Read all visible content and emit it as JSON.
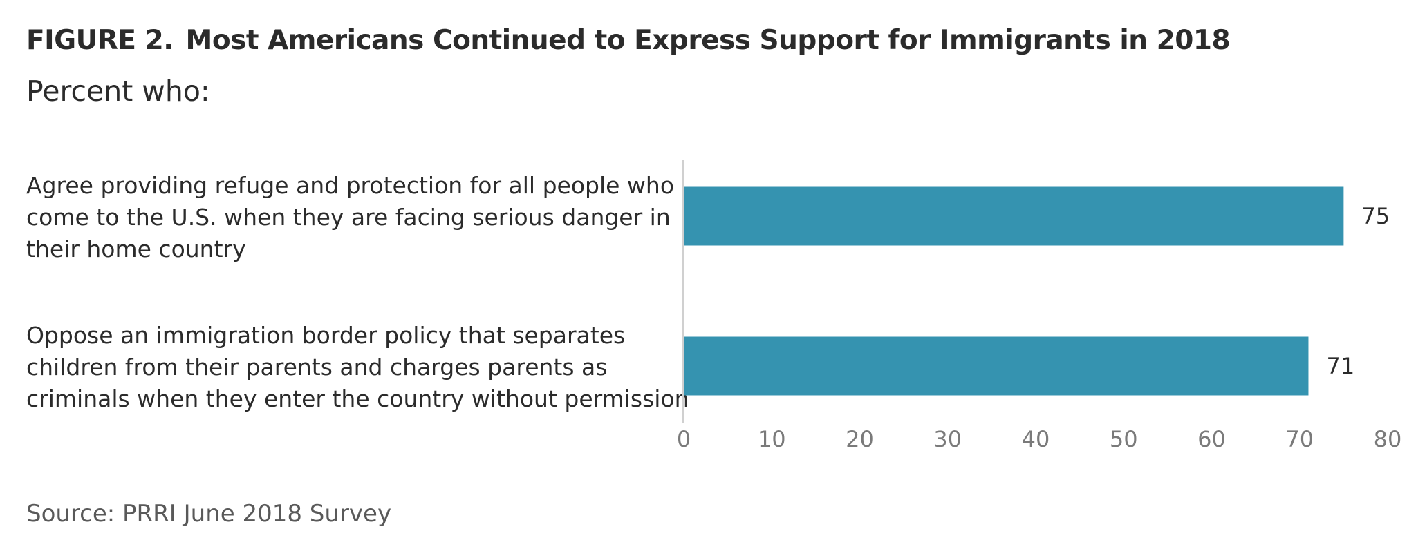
{
  "header": {
    "figure_label": "FIGURE 2.",
    "title": "Most Americans Continued to Express Support for Immigrants in 2018",
    "subtitle": "Percent who:"
  },
  "footer": {
    "source": "Source: PRRI June 2018 Survey"
  },
  "colors": {
    "bar": "#3593b0",
    "axis": "#d0d0d0"
  },
  "chart_data": {
    "type": "bar",
    "orientation": "horizontal",
    "title": "Most Americans Continued to Express Support for Immigrants in 2018",
    "subtitle": "Percent who:",
    "categories": [
      "Agree providing refuge and protection for all people who come to the U.S. when they are facing serious danger in their home country",
      "Oppose an immigration border policy that separates children from their parents and charges parents as criminals when they enter the country without permission"
    ],
    "values": [
      75,
      71
    ],
    "value_labels": [
      "75",
      "71"
    ],
    "xlim": [
      0,
      80
    ],
    "xticks": [
      0,
      10,
      20,
      30,
      40,
      50,
      60,
      70,
      80
    ],
    "xtick_labels": [
      "0",
      "10",
      "20",
      "30",
      "40",
      "50",
      "60",
      "70",
      "80"
    ],
    "grid": false,
    "legend": "none"
  }
}
